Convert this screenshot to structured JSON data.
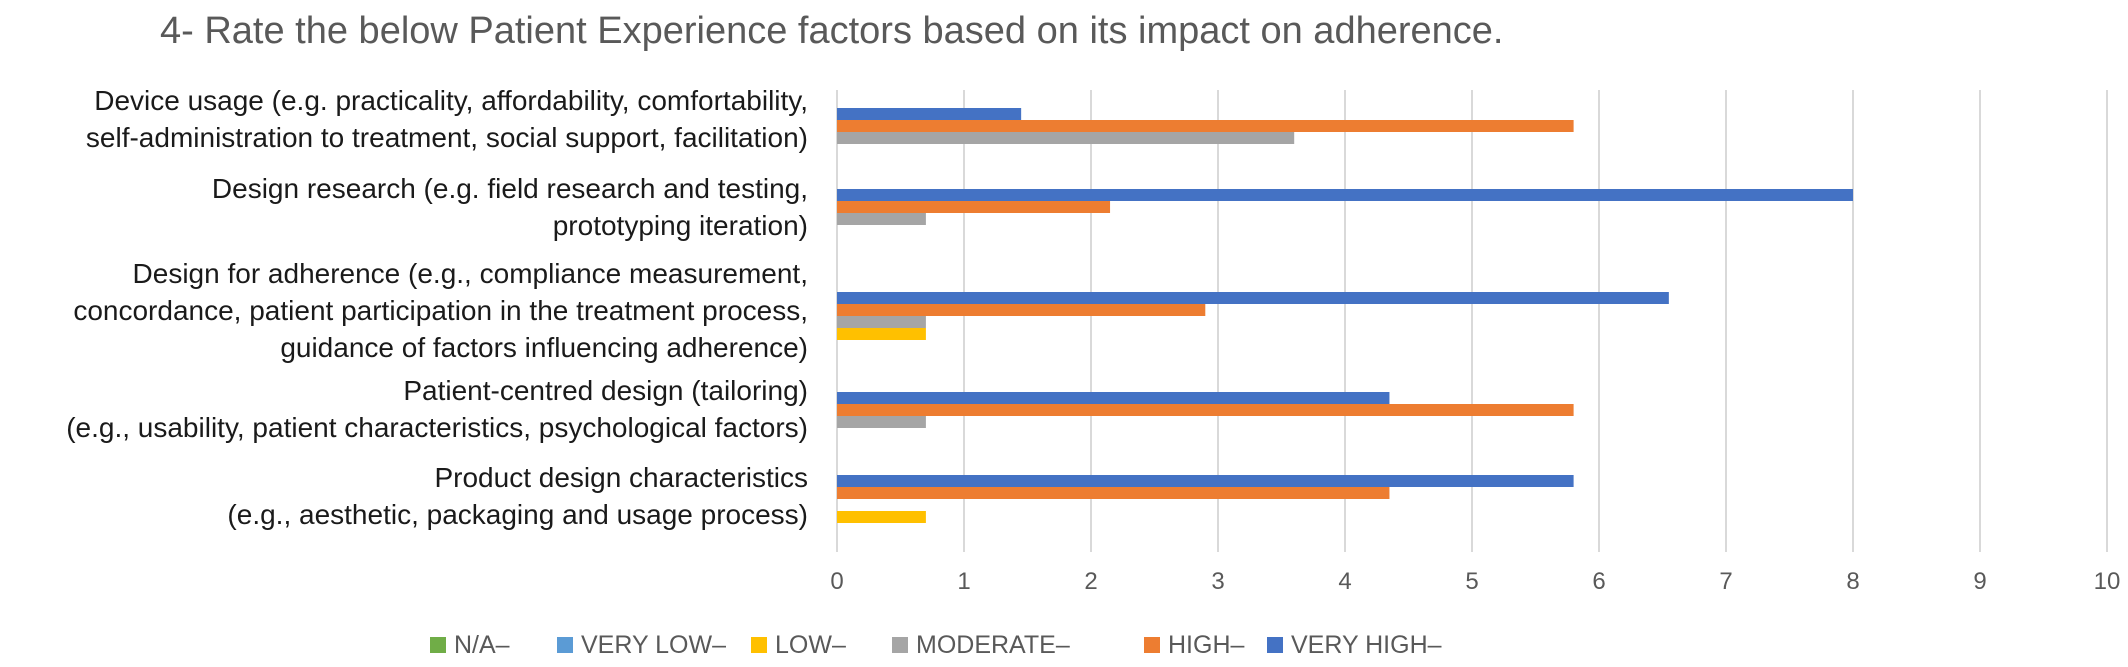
{
  "chart_data": {
    "type": "bar",
    "orientation": "horizontal",
    "title": "4- Rate the below Patient Experience factors based on its impact on adherence.",
    "categories": [
      [
        "Device usage (e.g. practicality, affordability, comfortability,",
        "self-administration to treatment, social support, facilitation)"
      ],
      [
        "Design research (e.g. field research and testing,",
        "prototyping iteration)"
      ],
      [
        "Design for adherence (e.g., compliance measurement,",
        "concordance, patient participation in the treatment process,",
        "guidance of factors influencing adherence)"
      ],
      [
        "Patient-centred design (tailoring)",
        "(e.g., usability, patient characteristics, psychological factors)"
      ],
      [
        "Product design characteristics",
        "(e.g., aesthetic, packaging and usage process)"
      ]
    ],
    "series": [
      {
        "name": "N/A–",
        "color": "#70AD47",
        "values": [
          0,
          0,
          0,
          0,
          0
        ]
      },
      {
        "name": "VERY LOW–",
        "color": "#5B9BD5",
        "values": [
          0,
          0,
          0,
          0,
          0
        ]
      },
      {
        "name": "LOW–",
        "color": "#FFC000",
        "values": [
          0,
          0,
          0.7,
          0,
          0.7
        ]
      },
      {
        "name": "MODERATE–",
        "color": "#A5A5A5",
        "values": [
          3.6,
          0.7,
          0.7,
          0.7,
          0
        ]
      },
      {
        "name": "HIGH–",
        "color": "#ED7D31",
        "values": [
          5.8,
          2.15,
          2.9,
          5.8,
          4.35
        ]
      },
      {
        "name": "VERY HIGH–",
        "color": "#4472C4",
        "values": [
          1.45,
          8,
          6.55,
          4.35,
          5.8
        ]
      }
    ],
    "xlim": [
      0,
      10
    ],
    "xticks": [
      0,
      1,
      2,
      3,
      4,
      5,
      6,
      7,
      8,
      9,
      10
    ],
    "grid": true,
    "legend": "bottom"
  }
}
